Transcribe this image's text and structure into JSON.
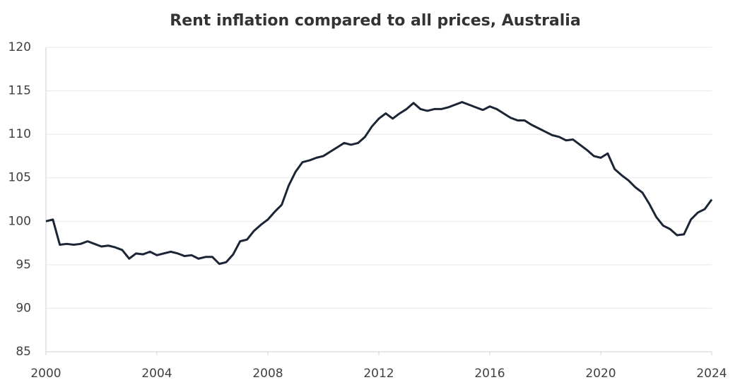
{
  "chart_data": {
    "type": "line",
    "title": "Rent inflation compared to all prices, Australia",
    "x": [
      2000,
      2000.25,
      2000.5,
      2000.75,
      2001,
      2001.25,
      2001.5,
      2001.75,
      2002,
      2002.25,
      2002.5,
      2002.75,
      2003,
      2003.25,
      2003.5,
      2003.75,
      2004,
      2004.25,
      2004.5,
      2004.75,
      2005,
      2005.25,
      2005.5,
      2005.75,
      2006,
      2006.25,
      2006.5,
      2006.75,
      2007,
      2007.25,
      2007.5,
      2007.75,
      2008,
      2008.25,
      2008.5,
      2008.75,
      2009,
      2009.25,
      2009.5,
      2009.75,
      2010,
      2010.25,
      2010.5,
      2010.75,
      2011,
      2011.25,
      2011.5,
      2011.75,
      2012,
      2012.25,
      2012.5,
      2012.75,
      2013,
      2013.25,
      2013.5,
      2013.75,
      2014,
      2014.25,
      2014.5,
      2014.75,
      2015,
      2015.25,
      2015.5,
      2015.75,
      2016,
      2016.25,
      2016.5,
      2016.75,
      2017,
      2017.25,
      2017.5,
      2017.75,
      2018,
      2018.25,
      2018.5,
      2018.75,
      2019,
      2019.25,
      2019.5,
      2019.75,
      2020,
      2020.25,
      2020.5,
      2020.75,
      2021,
      2021.25,
      2021.5,
      2021.75,
      2022,
      2022.25,
      2022.5,
      2022.75,
      2023,
      2023.25,
      2023.5,
      2023.75,
      2024
    ],
    "series": [
      {
        "color": "#1c2536",
        "values": [
          100.0,
          100.2,
          97.3,
          97.4,
          97.3,
          97.4,
          97.7,
          97.4,
          97.1,
          97.2,
          97.0,
          96.7,
          95.7,
          96.3,
          96.2,
          96.5,
          96.1,
          96.3,
          96.5,
          96.3,
          96.0,
          96.1,
          95.7,
          95.9,
          95.9,
          95.1,
          95.3,
          96.2,
          97.7,
          97.9,
          98.9,
          99.6,
          100.2,
          101.1,
          101.9,
          104.1,
          105.7,
          106.8,
          107.0,
          107.3,
          107.5,
          108.0,
          108.5,
          109.0,
          108.8,
          109.0,
          109.7,
          110.9,
          111.8,
          112.4,
          111.8,
          112.4,
          112.9,
          113.6,
          112.9,
          112.7,
          112.9,
          112.9,
          113.1,
          113.4,
          113.7,
          113.4,
          113.1,
          112.8,
          113.2,
          112.9,
          112.4,
          111.9,
          111.6,
          111.6,
          111.1,
          110.7,
          110.3,
          109.9,
          109.7,
          109.3,
          109.4,
          108.8,
          108.2,
          107.5,
          107.3,
          107.8,
          106.0,
          105.3,
          104.7,
          103.9,
          103.3,
          102.0,
          100.5,
          99.5,
          99.1,
          98.4,
          98.5,
          100.2,
          101.0,
          101.4,
          102.5
        ]
      }
    ],
    "xlim": [
      2000,
      2024
    ],
    "xticks": [
      2000,
      2004,
      2008,
      2012,
      2016,
      2020,
      2024
    ],
    "ylim": [
      85,
      120
    ],
    "yticks": [
      85,
      90,
      95,
      100,
      105,
      110,
      115,
      120
    ],
    "grid": true
  }
}
